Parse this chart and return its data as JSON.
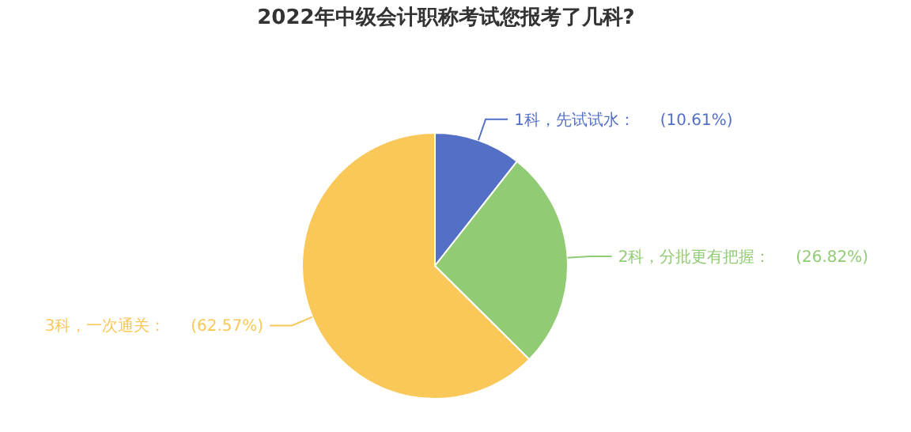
{
  "chart_data": {
    "type": "pie",
    "title": "2022年中级会计职称考试您报考了几科?",
    "categories": [
      "1科，先试试水",
      "2科，分批更有把握",
      "3科，一次通关"
    ],
    "values": [
      10.61,
      26.82,
      62.57
    ],
    "colors": [
      "#5470c6",
      "#91cc75",
      "#fac858"
    ],
    "value_labels": [
      "(10.61%)",
      "(26.82%)",
      "(62.57%)"
    ]
  }
}
